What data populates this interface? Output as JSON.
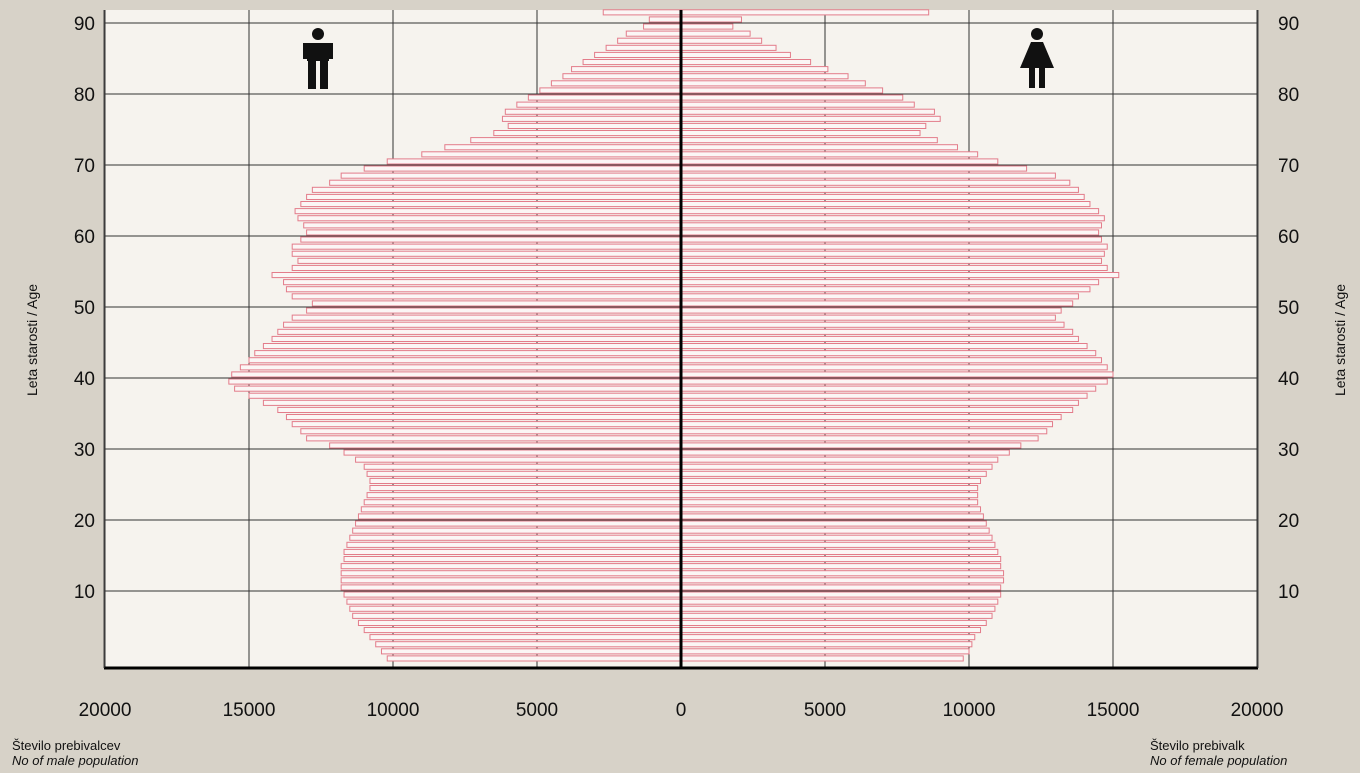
{
  "colors": {
    "background": "#d7d2c8",
    "plot_background": "#f6f3ee",
    "bar_stroke": "#e37c8a",
    "grid": "#333333",
    "axis": "#000000"
  },
  "icons": {
    "male": "male-person-icon",
    "female": "female-person-icon"
  },
  "captions": {
    "male_line1": "Število prebivalcev",
    "male_line2": "No of male population",
    "female_line1": "Število prebivalk",
    "female_line2": "No of female population"
  },
  "chart_data": {
    "type": "bar",
    "subtype": "population-pyramid",
    "orientation": "horizontal",
    "ylabel": "Leta starosti / Age",
    "xlabel_left": "Število prebivalcev / No of male population",
    "xlabel_right": "Število prebivalk / No of female population",
    "x_ticks_left": [
      "20000",
      "15000",
      "10000",
      "5000"
    ],
    "x_tick_center": "0",
    "x_ticks_right": [
      "5000",
      "10000",
      "15000",
      "20000"
    ],
    "x_tick_values": [
      -20000,
      -15000,
      -10000,
      -5000,
      0,
      5000,
      10000,
      15000,
      20000
    ],
    "y_ticks": [
      "10",
      "20",
      "30",
      "40",
      "50",
      "60",
      "70",
      "80",
      "90"
    ],
    "xlim": [
      -20000,
      20000
    ],
    "ylim": [
      0,
      92
    ],
    "grid": true,
    "ages": [
      0,
      1,
      2,
      3,
      4,
      5,
      6,
      7,
      8,
      9,
      10,
      11,
      12,
      13,
      14,
      15,
      16,
      17,
      18,
      19,
      20,
      21,
      22,
      23,
      24,
      25,
      26,
      27,
      28,
      29,
      30,
      31,
      32,
      33,
      34,
      35,
      36,
      37,
      38,
      39,
      40,
      41,
      42,
      43,
      44,
      45,
      46,
      47,
      48,
      49,
      50,
      51,
      52,
      53,
      54,
      55,
      56,
      57,
      58,
      59,
      60,
      61,
      62,
      63,
      64,
      65,
      66,
      67,
      68,
      69,
      70,
      71,
      72,
      73,
      74,
      75,
      76,
      77,
      78,
      79,
      80,
      81,
      82,
      83,
      84,
      85,
      86,
      87,
      88,
      89,
      90,
      91
    ],
    "series": [
      {
        "name": "Males",
        "values": [
          10200,
          10400,
          10600,
          10800,
          11000,
          11200,
          11400,
          11500,
          11600,
          11700,
          11800,
          11800,
          11800,
          11800,
          11700,
          11700,
          11600,
          11500,
          11400,
          11300,
          11200,
          11100,
          11000,
          10900,
          10800,
          10800,
          10900,
          11000,
          11300,
          11700,
          12200,
          13000,
          13200,
          13500,
          13700,
          14000,
          14500,
          15000,
          15500,
          15700,
          15600,
          15300,
          15000,
          14800,
          14500,
          14200,
          14000,
          13800,
          13500,
          13000,
          12800,
          13500,
          13700,
          13800,
          14200,
          13500,
          13300,
          13500,
          13500,
          13200,
          13000,
          13100,
          13300,
          13400,
          13200,
          13000,
          12800,
          12200,
          11800,
          11000,
          10200,
          9000,
          8200,
          7300,
          6500,
          6000,
          6200,
          6100,
          5700,
          5300,
          4900,
          4500,
          4100,
          3800,
          3400,
          3000,
          2600,
          2200,
          1900,
          1300,
          1100,
          2700
        ]
      },
      {
        "name": "Females",
        "values": [
          9800,
          10000,
          10100,
          10200,
          10400,
          10600,
          10800,
          10900,
          11000,
          11100,
          11100,
          11200,
          11200,
          11100,
          11100,
          11000,
          10900,
          10800,
          10700,
          10600,
          10500,
          10400,
          10300,
          10300,
          10300,
          10400,
          10600,
          10800,
          11000,
          11400,
          11800,
          12400,
          12700,
          12900,
          13200,
          13600,
          13800,
          14100,
          14400,
          14800,
          15000,
          14800,
          14600,
          14400,
          14100,
          13800,
          13600,
          13300,
          13000,
          13200,
          13600,
          13800,
          14200,
          14500,
          15200,
          14800,
          14600,
          14700,
          14800,
          14600,
          14500,
          14600,
          14700,
          14500,
          14200,
          14000,
          13800,
          13500,
          13000,
          12000,
          11000,
          10300,
          9600,
          8900,
          8300,
          8500,
          9000,
          8800,
          8100,
          7700,
          7000,
          6400,
          5800,
          5100,
          4500,
          3800,
          3300,
          2800,
          2400,
          1800,
          2100,
          8600
        ]
      }
    ]
  }
}
